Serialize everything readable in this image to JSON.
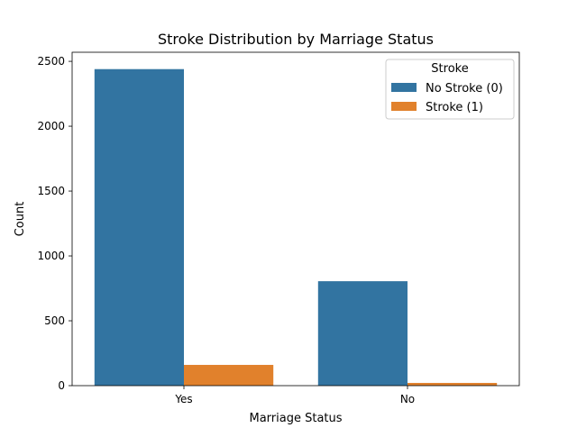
{
  "chart_data": {
    "type": "bar",
    "title": "Stroke Distribution by Marriage Status",
    "xlabel": "Marriage Status",
    "ylabel": "Count",
    "categories": [
      "Yes",
      "No"
    ],
    "series": [
      {
        "name": "No Stroke (0)",
        "values": [
          2440,
          805
        ],
        "color": "#3274a1"
      },
      {
        "name": "Stroke (1)",
        "values": [
          160,
          21
        ],
        "color": "#e1812c"
      }
    ],
    "ylim": [
      0,
      2570
    ],
    "yticks": [
      0,
      500,
      1000,
      1500,
      2000,
      2500
    ],
    "legend": {
      "title": "Stroke",
      "placement": "top-right"
    },
    "grid": false
  }
}
